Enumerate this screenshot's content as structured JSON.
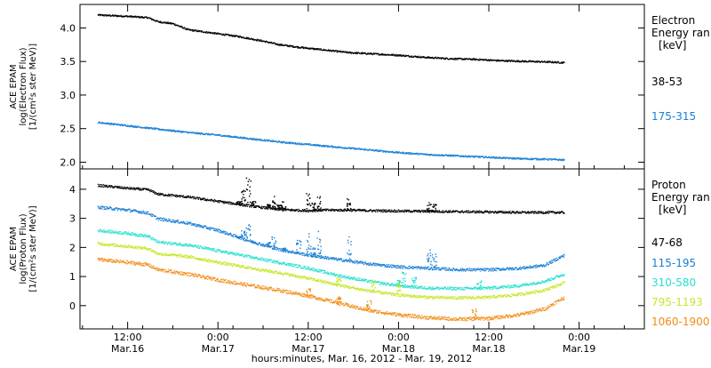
{
  "chart_data": [
    {
      "type": "scatter",
      "panel": "electron",
      "ylabel_lines": [
        "ACE EPAM",
        "log(Electron Flux)",
        "[1/(cm²s ster MeV)]"
      ],
      "ylim": [
        1.9,
        4.35
      ],
      "yticks": [
        2.0,
        2.5,
        3.0,
        3.5,
        4.0
      ],
      "ytick_labels": [
        "2.0",
        "2.5",
        "3.0",
        "3.5",
        "4.0"
      ],
      "legend_title": [
        "Electron",
        "Energy ran"
      ],
      "legend_unit": "[keV]",
      "series": [
        {
          "name": "38-53",
          "color": "#000000",
          "noise": 0.012,
          "points": [
            [
              0,
              4.2
            ],
            [
              12,
              4.18
            ],
            [
              20,
              4.16
            ],
            [
              24,
              4.1
            ],
            [
              30,
              4.07
            ],
            [
              36,
              3.98
            ],
            [
              46,
              3.93
            ],
            [
              56,
              3.88
            ],
            [
              66,
              3.81
            ],
            [
              72,
              3.76
            ],
            [
              80,
              3.72
            ],
            [
              90,
              3.68
            ],
            [
              100,
              3.64
            ],
            [
              110,
              3.62
            ],
            [
              120,
              3.6
            ],
            [
              130,
              3.57
            ],
            [
              140,
              3.55
            ],
            [
              150,
              3.54
            ],
            [
              160,
              3.52
            ],
            [
              170,
              3.51
            ],
            [
              180,
              3.5
            ],
            [
              186,
              3.49
            ]
          ]
        },
        {
          "name": "175-315",
          "color": "#1a7fd6",
          "noise": 0.012,
          "points": [
            [
              0,
              2.6
            ],
            [
              12,
              2.55
            ],
            [
              24,
              2.5
            ],
            [
              36,
              2.45
            ],
            [
              48,
              2.41
            ],
            [
              60,
              2.36
            ],
            [
              72,
              2.31
            ],
            [
              84,
              2.27
            ],
            [
              96,
              2.23
            ],
            [
              108,
              2.19
            ],
            [
              120,
              2.15
            ],
            [
              132,
              2.12
            ],
            [
              144,
              2.1
            ],
            [
              156,
              2.08
            ],
            [
              168,
              2.06
            ],
            [
              180,
              2.05
            ],
            [
              186,
              2.04
            ]
          ]
        }
      ]
    },
    {
      "type": "scatter",
      "panel": "proton",
      "ylabel_lines": [
        "ACE EPAM",
        "log(Proton Flux)",
        "[1/(cm²s ster MeV)]"
      ],
      "ylim": [
        -0.8,
        4.7
      ],
      "yticks": [
        0,
        1,
        2,
        3,
        4
      ],
      "ytick_labels": [
        "0",
        "1",
        "2",
        "3",
        "4"
      ],
      "legend_title": [
        "Proton",
        "Energy ran"
      ],
      "legend_unit": "[keV]",
      "series": [
        {
          "name": "47-68",
          "color": "#000000",
          "noise": 0.04,
          "points": [
            [
              0,
              4.15
            ],
            [
              12,
              4.05
            ],
            [
              20,
              4.0
            ],
            [
              24,
              3.85
            ],
            [
              36,
              3.75
            ],
            [
              48,
              3.6
            ],
            [
              60,
              3.45
            ],
            [
              72,
              3.32
            ],
            [
              84,
              3.28
            ],
            [
              90,
              3.3
            ],
            [
              100,
              3.3
            ],
            [
              110,
              3.28
            ],
            [
              120,
              3.27
            ],
            [
              130,
              3.26
            ],
            [
              140,
              3.25
            ],
            [
              150,
              3.24
            ],
            [
              160,
              3.23
            ],
            [
              170,
              3.22
            ],
            [
              186,
              3.22
            ]
          ],
          "spikes": [
            [
              56,
              3.6
            ],
            [
              58,
              4.0
            ],
            [
              60,
              4.5
            ],
            [
              62,
              3.6
            ],
            [
              68,
              3.5
            ],
            [
              70,
              3.8
            ],
            [
              72,
              3.5
            ],
            [
              74,
              3.6
            ],
            [
              78,
              3.3
            ],
            [
              84,
              3.9
            ],
            [
              86,
              3.6
            ],
            [
              88,
              3.9
            ],
            [
              100,
              3.7
            ],
            [
              132,
              3.6
            ],
            [
              134,
              3.5
            ]
          ]
        },
        {
          "name": "115-195",
          "color": "#1a7fd6",
          "noise": 0.05,
          "points": [
            [
              0,
              3.4
            ],
            [
              12,
              3.3
            ],
            [
              20,
              3.2
            ],
            [
              24,
              3.0
            ],
            [
              36,
              2.85
            ],
            [
              48,
              2.6
            ],
            [
              60,
              2.25
            ],
            [
              66,
              2.1
            ],
            [
              72,
              1.95
            ],
            [
              84,
              1.75
            ],
            [
              96,
              1.6
            ],
            [
              108,
              1.45
            ],
            [
              120,
              1.35
            ],
            [
              132,
              1.3
            ],
            [
              144,
              1.25
            ],
            [
              156,
              1.25
            ],
            [
              168,
              1.3
            ],
            [
              178,
              1.4
            ],
            [
              186,
              1.75
            ]
          ],
          "spikes": [
            [
              56,
              2.4
            ],
            [
              58,
              2.6
            ],
            [
              60,
              2.8
            ],
            [
              62,
              2.2
            ],
            [
              68,
              2.2
            ],
            [
              70,
              2.4
            ],
            [
              74,
              2.0
            ],
            [
              80,
              2.3
            ],
            [
              84,
              2.5
            ],
            [
              86,
              2.0
            ],
            [
              88,
              2.6
            ],
            [
              100,
              2.4
            ],
            [
              132,
              2.0
            ],
            [
              134,
              1.8
            ]
          ]
        },
        {
          "name": "310-580",
          "color": "#28e0d0",
          "noise": 0.05,
          "points": [
            [
              0,
              2.6
            ],
            [
              12,
              2.5
            ],
            [
              20,
              2.4
            ],
            [
              24,
              2.2
            ],
            [
              36,
              2.1
            ],
            [
              48,
              1.9
            ],
            [
              60,
              1.7
            ],
            [
              72,
              1.5
            ],
            [
              84,
              1.3
            ],
            [
              96,
              1.05
            ],
            [
              108,
              0.85
            ],
            [
              120,
              0.7
            ],
            [
              132,
              0.62
            ],
            [
              144,
              0.6
            ],
            [
              156,
              0.62
            ],
            [
              168,
              0.7
            ],
            [
              178,
              0.85
            ],
            [
              186,
              1.1
            ]
          ],
          "spikes": [
            [
              120,
              0.9
            ],
            [
              122,
              1.2
            ],
            [
              126,
              1.0
            ],
            [
              152,
              0.9
            ]
          ]
        },
        {
          "name": "795-1193",
          "color": "#c8e62a",
          "noise": 0.05,
          "points": [
            [
              0,
              2.15
            ],
            [
              12,
              2.05
            ],
            [
              20,
              1.98
            ],
            [
              24,
              1.8
            ],
            [
              36,
              1.7
            ],
            [
              48,
              1.5
            ],
            [
              60,
              1.32
            ],
            [
              72,
              1.15
            ],
            [
              84,
              0.95
            ],
            [
              96,
              0.72
            ],
            [
              108,
              0.52
            ],
            [
              120,
              0.38
            ],
            [
              132,
              0.3
            ],
            [
              144,
              0.28
            ],
            [
              156,
              0.3
            ],
            [
              168,
              0.4
            ],
            [
              178,
              0.55
            ],
            [
              186,
              0.8
            ]
          ],
          "spikes": [
            [
              96,
              1.0
            ],
            [
              110,
              0.9
            ],
            [
              120,
              0.8
            ]
          ]
        },
        {
          "name": "1060-1900",
          "color": "#f08c14",
          "noise": 0.06,
          "points": [
            [
              0,
              1.6
            ],
            [
              12,
              1.5
            ],
            [
              20,
              1.42
            ],
            [
              24,
              1.25
            ],
            [
              36,
              1.1
            ],
            [
              48,
              0.9
            ],
            [
              60,
              0.72
            ],
            [
              72,
              0.55
            ],
            [
              84,
              0.35
            ],
            [
              96,
              0.1
            ],
            [
              108,
              -0.15
            ],
            [
              120,
              -0.3
            ],
            [
              132,
              -0.4
            ],
            [
              144,
              -0.45
            ],
            [
              156,
              -0.42
            ],
            [
              168,
              -0.3
            ],
            [
              178,
              -0.1
            ],
            [
              186,
              0.3
            ]
          ],
          "spikes": [
            [
              84,
              0.6
            ],
            [
              96,
              0.4
            ],
            [
              108,
              0.2
            ],
            [
              150,
              -0.1
            ]
          ]
        }
      ]
    }
  ],
  "x_axis": {
    "xlim": [
      -7,
      218
    ],
    "ticks": [
      {
        "x": 12,
        "line1": "12:00",
        "line2": "Mar.16"
      },
      {
        "x": 48,
        "line1": "0:00",
        "line2": "Mar.17"
      },
      {
        "x": 84,
        "line1": "12:00",
        "line2": "Mar.17"
      },
      {
        "x": 120,
        "line1": "0:00",
        "line2": "Mar.18"
      },
      {
        "x": 156,
        "line1": "12:00",
        "line2": "Mar.18"
      },
      {
        "x": 192,
        "line1": "0:00",
        "line2": "Mar.19"
      }
    ],
    "xlabel": "hours:minutes, Mar. 16, 2012 - Mar. 19, 2012"
  }
}
